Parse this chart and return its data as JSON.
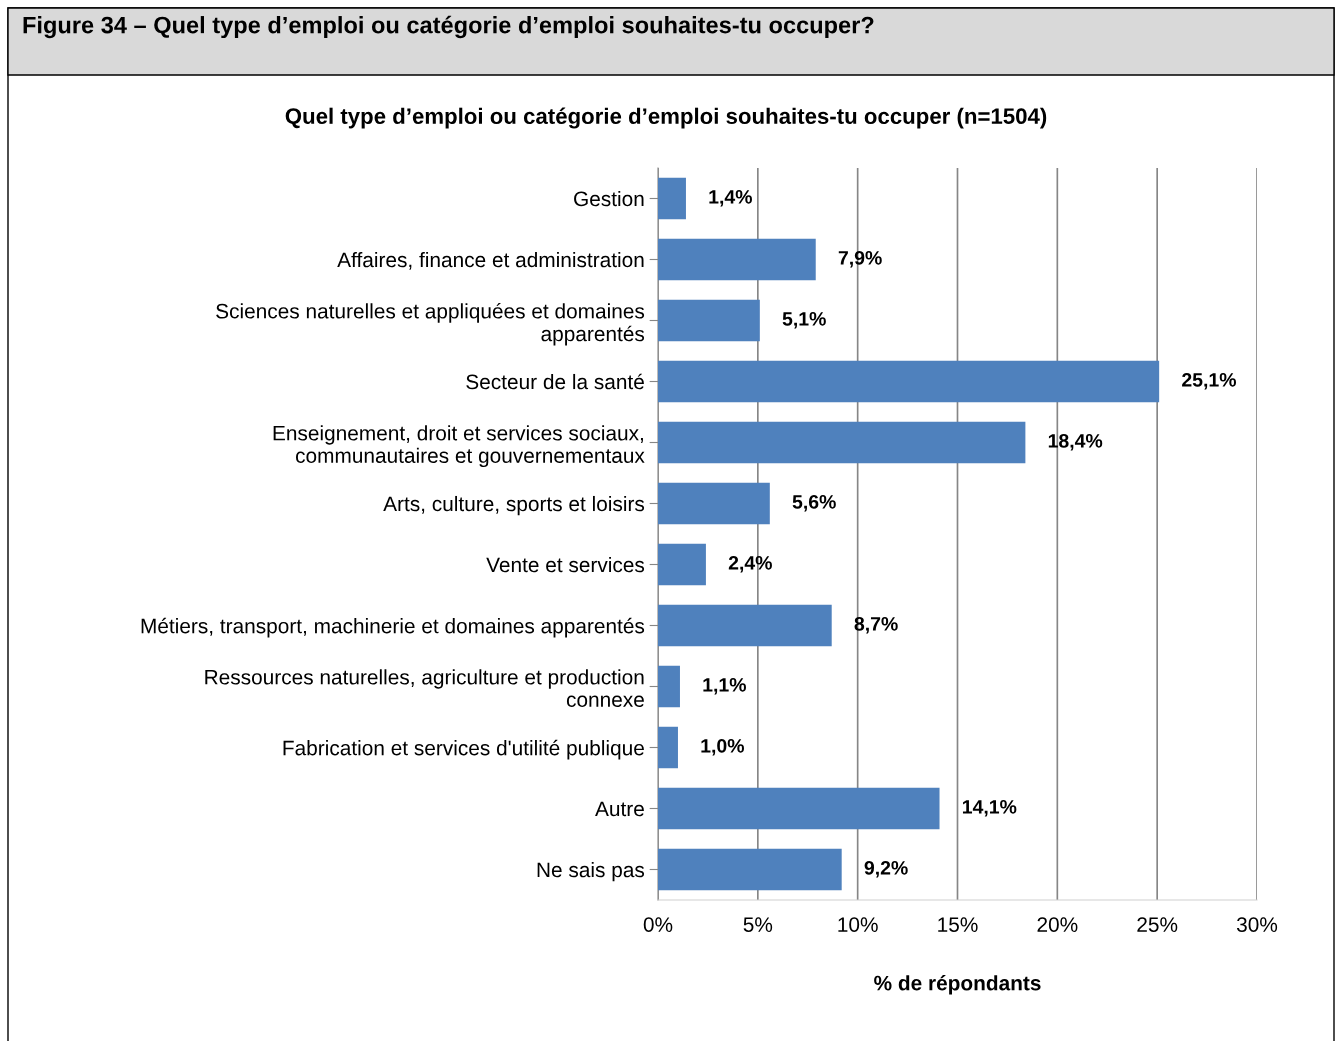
{
  "chart_data": {
    "type": "bar",
    "orientation": "horizontal",
    "title": "Figure 34 – Quel type d’emploi ou catégorie d’emploi souhaites-tu occuper?",
    "subtitle": "Quel type d’emploi ou catégorie d’emploi souhaites-tu occuper (n=1504)",
    "xlabel": "% de répondants",
    "categories": [
      "Gestion",
      "Affaires, finance et administration",
      "Sciences naturelles et appliquées et domaines\napparentés",
      "Secteur de la santé",
      "Enseignement, droit et services sociaux,\ncommunautaires et gouvernementaux",
      "Arts, culture, sports et loisirs",
      "Vente et services",
      "Métiers, transport, machinerie et domaines apparentés",
      "Ressources naturelles, agriculture et production\nconnexe",
      "Fabrication et services d'utilité publique",
      "Autre",
      "Ne sais pas"
    ],
    "values": [
      1.4,
      7.9,
      5.1,
      25.1,
      18.4,
      5.6,
      2.4,
      8.7,
      1.1,
      1.0,
      14.1,
      9.2
    ],
    "value_labels": [
      "1,4%",
      "7,9%",
      "5,1%",
      "25,1%",
      "18,4%",
      "5,6%",
      "2,4%",
      "8,7%",
      "1,1%",
      "1,0%",
      "14,1%",
      "9,2%"
    ],
    "color": "#4f81bd",
    "xlim": [
      0,
      30
    ],
    "xticks": [
      {
        "value": 0,
        "label": "0%"
      },
      {
        "value": 5,
        "label": "5%"
      },
      {
        "value": 10,
        "label": "10%"
      },
      {
        "value": 15,
        "label": "15%"
      },
      {
        "value": 20,
        "label": "20%"
      },
      {
        "value": 25,
        "label": "25%"
      },
      {
        "value": 30,
        "label": "30%"
      }
    ],
    "grid": "x"
  }
}
